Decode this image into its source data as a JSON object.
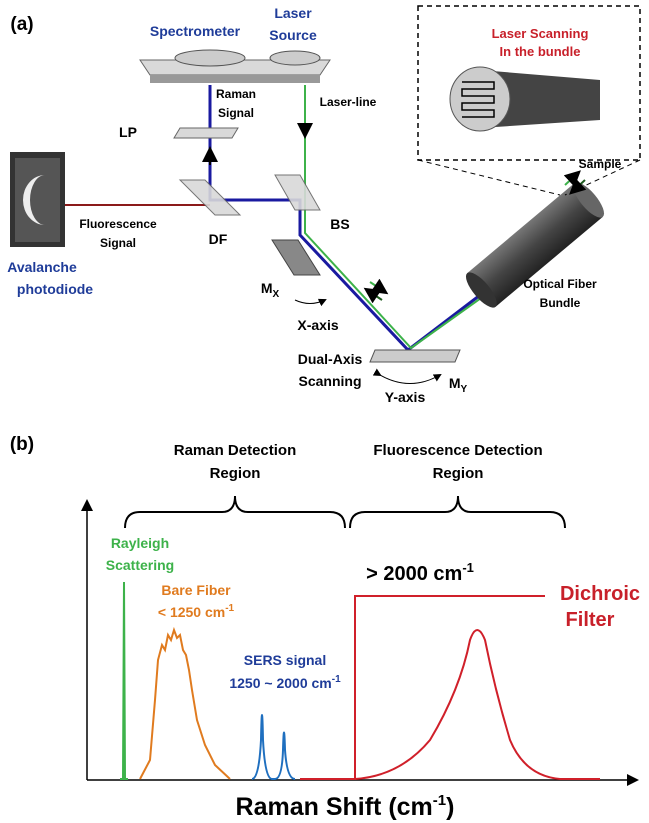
{
  "panel_a": {
    "label": "(a)",
    "spectrometer": "Spectrometer",
    "laser_source": [
      "Laser",
      "Source"
    ],
    "laser_line": "Laser-line",
    "raman_signal": [
      "Raman",
      "Signal"
    ],
    "lp": "LP",
    "bundle_inset": [
      "Laser Scanning",
      "In the bundle"
    ],
    "sample": "Sample",
    "fluorescence_signal": [
      "Fluorescence",
      "Signal"
    ],
    "df": "DF",
    "bs": "BS",
    "apd": [
      "Avalanche",
      "photodiode"
    ],
    "mirror_x": {
      "text": "M",
      "sub": "X"
    },
    "x_axis": "X-axis",
    "fiber": [
      "Optical Fiber",
      "Bundle"
    ],
    "scanning": [
      "Dual-Axis",
      "Scanning"
    ],
    "y_axis": "Y-axis",
    "mirror_y": {
      "text": "M",
      "sub": "Y"
    }
  },
  "panel_b": {
    "label": "(b)",
    "raman_region": [
      "Raman Detection",
      "Region"
    ],
    "fluorescence_region": [
      "Fluorescence Detection",
      "Region"
    ],
    "rayleigh": [
      "Rayleigh",
      "Scattering"
    ],
    "bare_fiber": {
      "line1": "Bare Fiber",
      "line2": {
        "text": "< 1250 cm",
        "sup": "-1"
      }
    },
    "sers": {
      "line1": "SERS signal",
      "line2": {
        "text": "1250 ~ 2000 cm",
        "sup": "-1"
      }
    },
    "cutoff": {
      "text": "> 2000 cm",
      "sup": "-1"
    },
    "dichroic": [
      "Dichroic",
      "Filter"
    ],
    "x_axis_title": {
      "text": "Raman Shift (cm",
      "sup": "-1",
      "after": ")"
    }
  }
}
